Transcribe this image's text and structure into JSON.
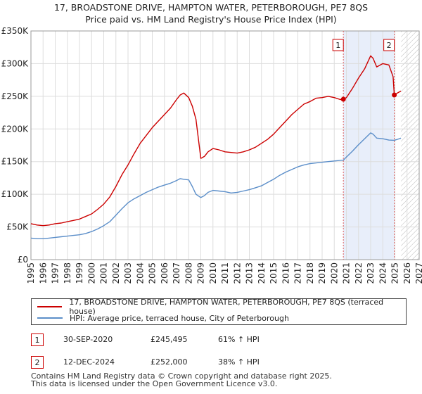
{
  "chart_data": {
    "type": "line",
    "title": "17, BROADSTONE DRIVE, HAMPTON WATER, PETERBOROUGH, PE7 8QS",
    "subtitle": "Price paid vs. HM Land Registry's House Price Index (HPI)",
    "xlabel": "",
    "ylabel": "",
    "xlim": [
      1995,
      2027
    ],
    "ylim": [
      0,
      350000
    ],
    "x_ticks": [
      "1995",
      "1996",
      "1997",
      "1998",
      "1999",
      "2000",
      "2001",
      "2002",
      "2003",
      "2004",
      "2005",
      "2006",
      "2007",
      "2008",
      "2009",
      "2010",
      "2011",
      "2012",
      "2013",
      "2014",
      "2015",
      "2016",
      "2017",
      "2018",
      "2019",
      "2020",
      "2021",
      "2022",
      "2023",
      "2024",
      "2025",
      "2026",
      "2027"
    ],
    "y_ticks": [
      "£0",
      "£50K",
      "£100K",
      "£150K",
      "£200K",
      "£250K",
      "£300K",
      "£350K"
    ],
    "y_tick_values": [
      0,
      50000,
      100000,
      150000,
      200000,
      250000,
      300000,
      350000
    ],
    "grid": true,
    "series": [
      {
        "name": "17, BROADSTONE DRIVE, HAMPTON WATER, PETERBOROUGH, PE7 8QS (terraced house)",
        "color": "#cc0000",
        "x": [
          1995.0,
          1995.5,
          1996.0,
          1996.5,
          1997.0,
          1997.5,
          1998.0,
          1998.5,
          1999.0,
          1999.5,
          2000.0,
          2000.5,
          2001.0,
          2001.5,
          2002.0,
          2002.5,
          2003.0,
          2003.5,
          2004.0,
          2004.5,
          2005.0,
          2005.5,
          2006.0,
          2006.5,
          2007.0,
          2007.3,
          2007.6,
          2008.0,
          2008.3,
          2008.6,
          2009.0,
          2009.3,
          2009.6,
          2010.0,
          2010.5,
          2011.0,
          2011.5,
          2012.0,
          2012.5,
          2013.0,
          2013.5,
          2014.0,
          2014.5,
          2015.0,
          2015.5,
          2016.0,
          2016.5,
          2017.0,
          2017.5,
          2018.0,
          2018.5,
          2019.0,
          2019.5,
          2020.0,
          2020.5,
          2020.75,
          2021.0,
          2021.5,
          2022.0,
          2022.5,
          2023.0,
          2023.2,
          2023.5,
          2024.0,
          2024.5,
          2024.85,
          2024.95,
          2025.2,
          2025.5
        ],
        "values": [
          55000,
          53000,
          52000,
          53000,
          55000,
          56000,
          58000,
          60000,
          62000,
          66000,
          70000,
          77000,
          85000,
          96000,
          112000,
          130000,
          145000,
          162000,
          178000,
          190000,
          202000,
          212000,
          222000,
          232000,
          245000,
          252000,
          255000,
          248000,
          235000,
          215000,
          155000,
          158000,
          165000,
          170000,
          168000,
          165000,
          164000,
          163000,
          165000,
          168000,
          172000,
          178000,
          184000,
          192000,
          202000,
          212000,
          222000,
          230000,
          238000,
          242000,
          247000,
          248000,
          250000,
          248000,
          245000,
          245495,
          248000,
          262000,
          278000,
          292000,
          312000,
          308000,
          295000,
          300000,
          298000,
          280000,
          252000,
          255000,
          258000
        ]
      },
      {
        "name": "HPI: Average price, terraced house, City of Peterborough",
        "color": "#5b8ec9",
        "x": [
          1995.0,
          1995.5,
          1996.0,
          1996.5,
          1997.0,
          1997.5,
          1998.0,
          1998.5,
          1999.0,
          1999.5,
          2000.0,
          2000.5,
          2001.0,
          2001.5,
          2002.0,
          2002.5,
          2003.0,
          2003.5,
          2004.0,
          2004.5,
          2005.0,
          2005.5,
          2006.0,
          2006.5,
          2007.0,
          2007.3,
          2007.6,
          2008.0,
          2008.3,
          2008.6,
          2009.0,
          2009.3,
          2009.6,
          2010.0,
          2010.5,
          2011.0,
          2011.5,
          2012.0,
          2012.5,
          2013.0,
          2013.5,
          2014.0,
          2014.5,
          2015.0,
          2015.5,
          2016.0,
          2016.5,
          2017.0,
          2017.5,
          2018.0,
          2018.5,
          2019.0,
          2019.5,
          2020.0,
          2020.5,
          2020.75,
          2021.0,
          2021.5,
          2022.0,
          2022.5,
          2023.0,
          2023.2,
          2023.5,
          2024.0,
          2024.5,
          2024.95,
          2025.2,
          2025.5
        ],
        "values": [
          33000,
          32000,
          32000,
          33000,
          34000,
          35000,
          36000,
          37000,
          38000,
          40000,
          43000,
          47000,
          52000,
          58000,
          68000,
          78000,
          87000,
          93000,
          98000,
          103000,
          107000,
          111000,
          114000,
          117000,
          121000,
          124000,
          123000,
          122000,
          112000,
          100000,
          95000,
          98000,
          103000,
          106000,
          105000,
          104000,
          102000,
          103000,
          105000,
          107000,
          110000,
          113000,
          118000,
          123000,
          129000,
          134000,
          138000,
          142000,
          145000,
          147000,
          148000,
          149000,
          150000,
          151000,
          152000,
          152300,
          157000,
          166000,
          176000,
          185000,
          194000,
          192000,
          186000,
          185000,
          183000,
          182600,
          184000,
          186000
        ]
      }
    ],
    "markers": [
      {
        "label": "1",
        "x": 2020.75,
        "value": 245495
      },
      {
        "label": "2",
        "x": 2024.95,
        "value": 252000
      }
    ],
    "hatch_from": 2025.5,
    "legend_position": "below"
  },
  "annotations": [
    {
      "label": "1",
      "date": "30-SEP-2020",
      "price": "£245,495",
      "hpi": "61% ↑ HPI"
    },
    {
      "label": "2",
      "date": "12-DEC-2024",
      "price": "£252,000",
      "hpi": "38% ↑ HPI"
    }
  ],
  "footer": {
    "line1": "Contains HM Land Registry data © Crown copyright and database right 2025.",
    "line2": "This data is licensed under the Open Government Licence v3.0."
  },
  "colors": {
    "property": "#cc0000",
    "hpi": "#5b8ec9",
    "grid": "#dddddd",
    "highlight": "#e8eefa"
  }
}
